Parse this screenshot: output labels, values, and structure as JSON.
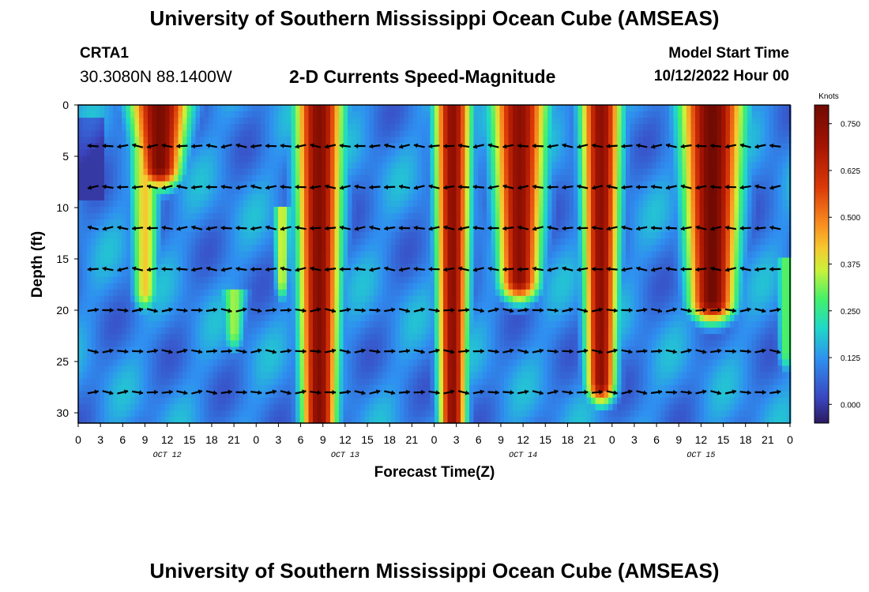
{
  "header": {
    "title": "University of Southern Mississippi Ocean Cube (AMSEAS)",
    "station_id": "CRTA1",
    "station_coords": "30.3080N  88.1400W",
    "chart_title": "2-D Currents Speed-Magnitude",
    "start_label": "Model Start Time",
    "start_value": "10/12/2022 Hour 00"
  },
  "footer": {
    "title": "University of Southern Mississippi Ocean Cube (AMSEAS)"
  },
  "chart_data": {
    "type": "heatmap",
    "title": "2-D Currents Speed-Magnitude",
    "xlabel": "Forecast Time(Z)",
    "ylabel": "Depth (ft)",
    "x_range_hours": [
      0,
      96
    ],
    "x_tick_step_hours": 3,
    "x_tick_labels": [
      "0",
      "3",
      "6",
      "9",
      "12",
      "15",
      "18",
      "21",
      "0",
      "3",
      "6",
      "9",
      "12",
      "15",
      "18",
      "21",
      "0",
      "3",
      "6",
      "9",
      "12",
      "15",
      "18",
      "21",
      "0",
      "3",
      "6",
      "9",
      "12",
      "15",
      "18",
      "21",
      "0"
    ],
    "date_labels": [
      {
        "label": "OCT 12",
        "hour": 12
      },
      {
        "label": "OCT 13",
        "hour": 36
      },
      {
        "label": "OCT 14",
        "hour": 60
      },
      {
        "label": "OCT 15",
        "hour": 84
      }
    ],
    "y_range_ft": [
      0,
      31
    ],
    "y_ticks": [
      0,
      5,
      10,
      15,
      20,
      25,
      30
    ],
    "colorbar": {
      "label": "Knots",
      "range": [
        -0.05,
        0.8
      ],
      "ticks": [
        0.0,
        0.125,
        0.25,
        0.375,
        0.5,
        0.625,
        0.75
      ],
      "tick_labels": [
        "0.000",
        "0.125",
        "0.250",
        "0.375",
        "0.500",
        "0.625",
        "0.750"
      ]
    },
    "speed_peaks_knots": [
      {
        "hour_center": 11,
        "hour_width": 3.2,
        "depth_top": 0,
        "depth_bottom": 6,
        "peak": 0.78
      },
      {
        "hour_center": 9,
        "hour_width": 1.8,
        "depth_top": 0,
        "depth_bottom": 18,
        "peak": 0.42
      },
      {
        "hour_center": 32.5,
        "hour_width": 2.6,
        "depth_top": 0,
        "depth_bottom": 31,
        "peak": 0.76
      },
      {
        "hour_center": 27.5,
        "hour_width": 1.0,
        "depth_top": 10,
        "depth_bottom": 17,
        "peak": 0.38
      },
      {
        "hour_center": 21,
        "hour_width": 1.5,
        "depth_top": 18,
        "depth_bottom": 22,
        "peak": 0.34
      },
      {
        "hour_center": 50.5,
        "hour_width": 2.0,
        "depth_top": 0,
        "depth_bottom": 31,
        "peak": 0.74
      },
      {
        "hour_center": 59.5,
        "hour_width": 3.0,
        "depth_top": 0,
        "depth_bottom": 17,
        "peak": 0.74
      },
      {
        "hour_center": 70.5,
        "hour_width": 2.2,
        "depth_top": 0,
        "depth_bottom": 27,
        "peak": 0.74
      },
      {
        "hour_center": 85.5,
        "hour_width": 3.4,
        "depth_top": 0,
        "depth_bottom": 19,
        "peak": 0.8
      },
      {
        "hour_center": 95.5,
        "hour_width": 1.2,
        "depth_top": 15,
        "depth_bottom": 24,
        "peak": 0.3
      }
    ],
    "arrow_depths_ft": [
      4,
      8,
      12,
      16,
      20,
      24,
      28
    ],
    "arrow_step_hours": 2,
    "arrow_direction": "mostly west at surface (0-16 ft), mostly east at depth (20-28 ft)"
  }
}
